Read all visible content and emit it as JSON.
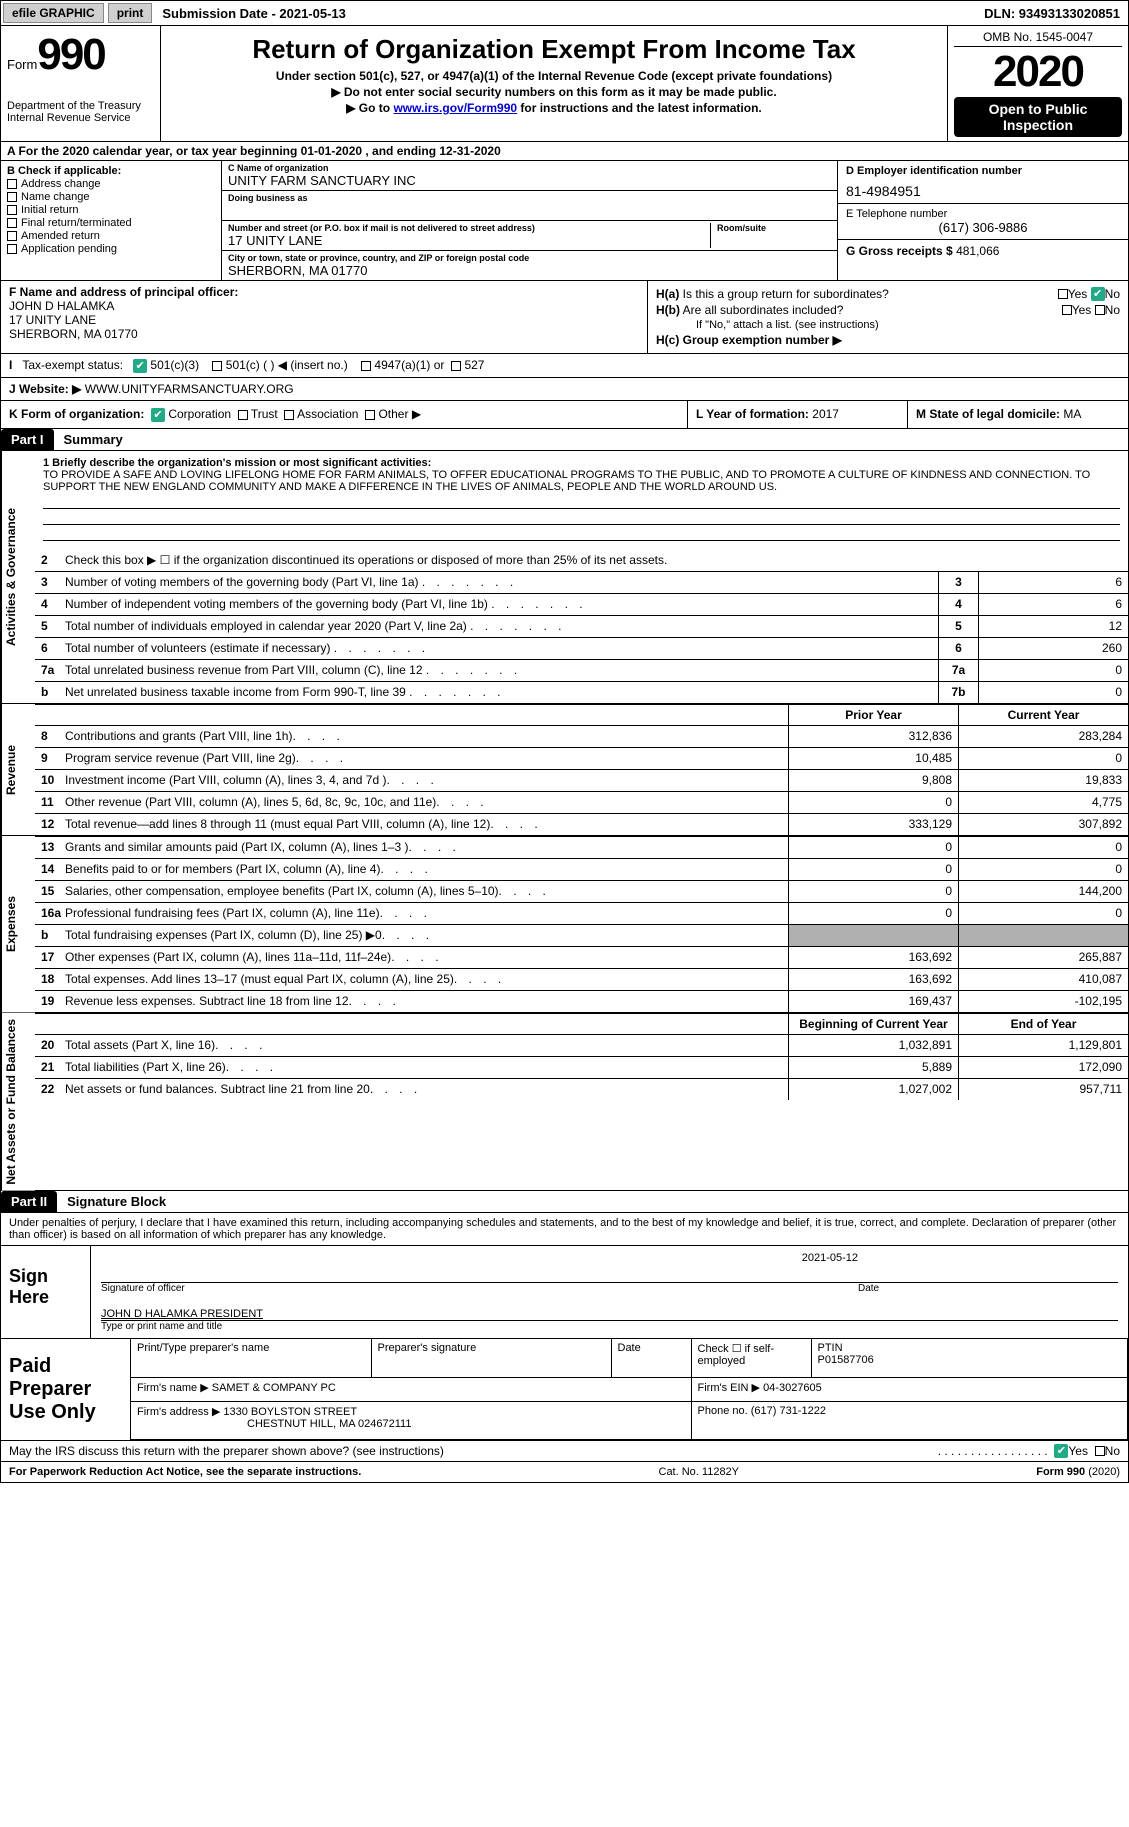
{
  "topbar": {
    "efile": "efile GRAPHIC",
    "print": "print",
    "subdate_label": "Submission Date - ",
    "subdate": "2021-05-13",
    "dln": "DLN: 93493133020851"
  },
  "header": {
    "form_word": "Form",
    "form_num": "990",
    "dept": "Department of the Treasury",
    "irs": "Internal Revenue Service",
    "title": "Return of Organization Exempt From Income Tax",
    "sub1": "Under section 501(c), 527, or 4947(a)(1) of the Internal Revenue Code (except private foundations)",
    "sub2": "▶ Do not enter social security numbers on this form as it may be made public.",
    "sub3_pre": "▶ Go to ",
    "sub3_link": "www.irs.gov/Form990",
    "sub3_post": " for instructions and the latest information.",
    "omb": "OMB No. 1545-0047",
    "year": "2020",
    "open": "Open to Public Inspection"
  },
  "row_a": "A For the 2020 calendar year, or tax year beginning 01-01-2020   , and ending 12-31-2020",
  "b": {
    "label": "B Check if applicable:",
    "items": [
      "Address change",
      "Name change",
      "Initial return",
      "Final return/terminated",
      "Amended return",
      "Application pending"
    ]
  },
  "c": {
    "name_label": "C Name of organization",
    "name": "UNITY FARM SANCTUARY INC",
    "dba_label": "Doing business as",
    "street_label": "Number and street (or P.O. box if mail is not delivered to street address)",
    "room_label": "Room/suite",
    "street": "17 UNITY LANE",
    "city_label": "City or town, state or province, country, and ZIP or foreign postal code",
    "city": "SHERBORN, MA  01770"
  },
  "d": {
    "ein_label": "D Employer identification number",
    "ein": "81-4984951",
    "phone_label": "E Telephone number",
    "phone": "(617) 306-9886",
    "gross_label": "G Gross receipts $",
    "gross": "481,066"
  },
  "f": {
    "label": "F  Name and address of principal officer:",
    "name": "JOHN D HALAMKA",
    "street": "17 UNITY LANE",
    "city": "SHERBORN, MA  01770"
  },
  "h": {
    "a_label": "H(a)  Is this a group return for subordinates?",
    "b_label": "H(b)  Are all subordinates included?",
    "b_note": "If \"No,\" attach a list. (see instructions)",
    "c_label": "H(c)  Group exemption number ▶",
    "yes": "Yes",
    "no": "No"
  },
  "i": {
    "label": "I    Tax-exempt status:",
    "opts": [
      "501(c)(3)",
      "501(c) (  ) ◀ (insert no.)",
      "4947(a)(1) or",
      "527"
    ]
  },
  "j": {
    "label": "J   Website: ▶",
    "val": "WWW.UNITYFARMSANCTUARY.ORG"
  },
  "k": {
    "label": "K Form of organization:",
    "opts": [
      "Corporation",
      "Trust",
      "Association",
      "Other ▶"
    ]
  },
  "l": {
    "label": "L Year of formation:",
    "val": "2017"
  },
  "m": {
    "label": "M State of legal domicile:",
    "val": "MA"
  },
  "parts": {
    "p1": "Part I",
    "p1t": "Summary",
    "p2": "Part II",
    "p2t": "Signature Block"
  },
  "summary": {
    "q1_label": "1  Briefly describe the organization's mission or most significant activities:",
    "q1_text": "TO PROVIDE A SAFE AND LOVING LIFELONG HOME FOR FARM ANIMALS, TO OFFER EDUCATIONAL PROGRAMS TO THE PUBLIC, AND TO PROMOTE A CULTURE OF KINDNESS AND CONNECTION. TO SUPPORT THE NEW ENGLAND COMMUNITY AND MAKE A DIFFERENCE IN THE LIVES OF ANIMALS, PEOPLE AND THE WORLD AROUND US.",
    "q2": "Check this box ▶ ☐  if the organization discontinued its operations or disposed of more than 25% of its net assets.",
    "lines_gov": [
      {
        "n": "3",
        "t": "Number of voting members of the governing body (Part VI, line 1a)",
        "box": "3",
        "v": "6"
      },
      {
        "n": "4",
        "t": "Number of independent voting members of the governing body (Part VI, line 1b)",
        "box": "4",
        "v": "6"
      },
      {
        "n": "5",
        "t": "Total number of individuals employed in calendar year 2020 (Part V, line 2a)",
        "box": "5",
        "v": "12"
      },
      {
        "n": "6",
        "t": "Total number of volunteers (estimate if necessary)",
        "box": "6",
        "v": "260"
      },
      {
        "n": "7a",
        "t": "Total unrelated business revenue from Part VIII, column (C), line 12",
        "box": "7a",
        "v": "0"
      },
      {
        "n": "b",
        "t": "Net unrelated business taxable income from Form 990-T, line 39",
        "box": "7b",
        "v": "0"
      }
    ],
    "head_prior": "Prior Year",
    "head_current": "Current Year",
    "revenue": [
      {
        "n": "8",
        "t": "Contributions and grants (Part VIII, line 1h)",
        "p": "312,836",
        "c": "283,284"
      },
      {
        "n": "9",
        "t": "Program service revenue (Part VIII, line 2g)",
        "p": "10,485",
        "c": "0"
      },
      {
        "n": "10",
        "t": "Investment income (Part VIII, column (A), lines 3, 4, and 7d )",
        "p": "9,808",
        "c": "19,833"
      },
      {
        "n": "11",
        "t": "Other revenue (Part VIII, column (A), lines 5, 6d, 8c, 9c, 10c, and 11e)",
        "p": "0",
        "c": "4,775"
      },
      {
        "n": "12",
        "t": "Total revenue—add lines 8 through 11 (must equal Part VIII, column (A), line 12)",
        "p": "333,129",
        "c": "307,892"
      }
    ],
    "expenses": [
      {
        "n": "13",
        "t": "Grants and similar amounts paid (Part IX, column (A), lines 1–3 )",
        "p": "0",
        "c": "0"
      },
      {
        "n": "14",
        "t": "Benefits paid to or for members (Part IX, column (A), line 4)",
        "p": "0",
        "c": "0"
      },
      {
        "n": "15",
        "t": "Salaries, other compensation, employee benefits (Part IX, column (A), lines 5–10)",
        "p": "0",
        "c": "144,200"
      },
      {
        "n": "16a",
        "t": "Professional fundraising fees (Part IX, column (A), line 11e)",
        "p": "0",
        "c": "0"
      },
      {
        "n": "b",
        "t": "Total fundraising expenses (Part IX, column (D), line 25) ▶0",
        "p": "grey",
        "c": "grey"
      },
      {
        "n": "17",
        "t": "Other expenses (Part IX, column (A), lines 11a–11d, 11f–24e)",
        "p": "163,692",
        "c": "265,887"
      },
      {
        "n": "18",
        "t": "Total expenses. Add lines 13–17 (must equal Part IX, column (A), line 25)",
        "p": "163,692",
        "c": "410,087"
      },
      {
        "n": "19",
        "t": "Revenue less expenses. Subtract line 18 from line 12",
        "p": "169,437",
        "c": "-102,195"
      }
    ],
    "head_begin": "Beginning of Current Year",
    "head_end": "End of Year",
    "netassets": [
      {
        "n": "20",
        "t": "Total assets (Part X, line 16)",
        "p": "1,032,891",
        "c": "1,129,801"
      },
      {
        "n": "21",
        "t": "Total liabilities (Part X, line 26)",
        "p": "5,889",
        "c": "172,090"
      },
      {
        "n": "22",
        "t": "Net assets or fund balances. Subtract line 21 from line 20",
        "p": "1,027,002",
        "c": "957,711"
      }
    ],
    "vlabels": {
      "gov": "Activities & Governance",
      "rev": "Revenue",
      "exp": "Expenses",
      "net": "Net Assets or Fund Balances"
    }
  },
  "sig": {
    "intro": "Under penalties of perjury, I declare that I have examined this return, including accompanying schedules and statements, and to the best of my knowledge and belief, it is true, correct, and complete. Declaration of preparer (other than officer) is based on all information of which preparer has any knowledge.",
    "sign_here": "Sign Here",
    "sig_officer": "Signature of officer",
    "date_label": "Date",
    "date": "2021-05-12",
    "name_title": "JOHN D HALAMKA  PRESIDENT",
    "type_name": "Type or print name and title"
  },
  "prep": {
    "label": "Paid Preparer Use Only",
    "h1": "Print/Type preparer's name",
    "h2": "Preparer's signature",
    "h3": "Date",
    "h4_check": "Check ☐ if self-employed",
    "h4_ptin_label": "PTIN",
    "h4_ptin": "P01587706",
    "firm_name_label": "Firm's name    ▶",
    "firm_name": "SAMET & COMPANY PC",
    "firm_ein_label": "Firm's EIN ▶",
    "firm_ein": "04-3027605",
    "firm_addr_label": "Firm's address ▶",
    "firm_addr1": "1330 BOYLSTON STREET",
    "firm_addr2": "CHESTNUT HILL, MA  024672111",
    "firm_phone_label": "Phone no.",
    "firm_phone": "(617) 731-1222"
  },
  "may": {
    "text": "May the IRS discuss this return with the preparer shown above? (see instructions)",
    "yes": "Yes",
    "no": "No"
  },
  "footer": {
    "left": "For Paperwork Reduction Act Notice, see the separate instructions.",
    "mid": "Cat. No. 11282Y",
    "right": "Form 990 (2020)"
  }
}
